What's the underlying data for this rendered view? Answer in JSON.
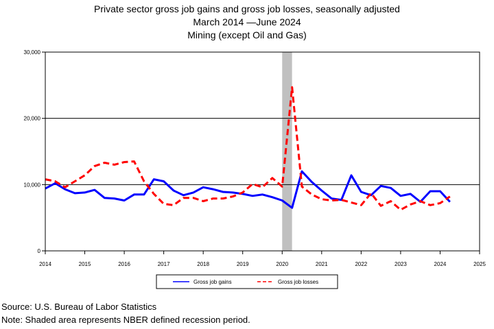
{
  "chart_data": {
    "type": "line",
    "title_lines": [
      "Private sector gross job gains and gross job losses, seasonally adjusted",
      "March 2014 —June 2024",
      "Mining (except Oil and Gas)"
    ],
    "xlim": [
      2014,
      2025
    ],
    "ylim": [
      0,
      30000
    ],
    "x_ticks": [
      2014,
      2015,
      2016,
      2017,
      2018,
      2019,
      2020,
      2021,
      2022,
      2023,
      2024,
      2025
    ],
    "x_tick_labels": [
      "2014",
      "2015",
      "2016",
      "2017",
      "2018",
      "2019",
      "2020",
      "2021",
      "2022",
      "2023",
      "2024",
      "2025"
    ],
    "y_ticks": [
      0,
      10000,
      20000,
      30000
    ],
    "y_tick_labels": [
      "0",
      "10,000",
      "20,000",
      "30,000"
    ],
    "horizontal_gridlines_at": [
      10000,
      20000
    ],
    "recession_shading": {
      "start": 2020.0,
      "end": 2020.25,
      "color": "#c0c0c0"
    },
    "x_period_labels": [
      "2014 Q1",
      "2014 Q2",
      "2014 Q3",
      "2014 Q4",
      "2015 Q1",
      "2015 Q2",
      "2015 Q3",
      "2015 Q4",
      "2016 Q1",
      "2016 Q2",
      "2016 Q3",
      "2016 Q4",
      "2017 Q1",
      "2017 Q2",
      "2017 Q3",
      "2017 Q4",
      "2018 Q1",
      "2018 Q2",
      "2018 Q3",
      "2018 Q4",
      "2019 Q1",
      "2019 Q2",
      "2019 Q3",
      "2019 Q4",
      "2020 Q1",
      "2020 Q2",
      "2020 Q3",
      "2020 Q4",
      "2021 Q1",
      "2021 Q2",
      "2021 Q3",
      "2021 Q4",
      "2022 Q1",
      "2022 Q2",
      "2022 Q3",
      "2022 Q4",
      "2023 Q1",
      "2023 Q2",
      "2023 Q3",
      "2023 Q4",
      "2024 Q1",
      "2024 Q2"
    ],
    "x": [
      2014.0,
      2014.25,
      2014.5,
      2014.75,
      2015.0,
      2015.25,
      2015.5,
      2015.75,
      2016.0,
      2016.25,
      2016.5,
      2016.75,
      2017.0,
      2017.25,
      2017.5,
      2017.75,
      2018.0,
      2018.25,
      2018.5,
      2018.75,
      2019.0,
      2019.25,
      2019.5,
      2019.75,
      2020.0,
      2020.25,
      2020.5,
      2020.75,
      2021.0,
      2021.25,
      2021.5,
      2021.75,
      2022.0,
      2022.25,
      2022.5,
      2022.75,
      2023.0,
      2023.25,
      2023.5,
      2023.75,
      2024.0,
      2024.25
    ],
    "series": [
      {
        "name": "Gross job gains",
        "color": "#0000ff",
        "dash": "solid",
        "values": [
          9400,
          10200,
          9300,
          8700,
          8800,
          9200,
          8000,
          7900,
          7600,
          8500,
          8500,
          10800,
          10500,
          9100,
          8400,
          8800,
          9600,
          9300,
          8900,
          8800,
          8600,
          8300,
          8500,
          8100,
          7600,
          6500,
          12000,
          10400,
          9100,
          7900,
          7700,
          11400,
          8900,
          8400,
          9800,
          9500,
          8300,
          8600,
          7400,
          9000,
          9000,
          7400
        ]
      },
      {
        "name": "Gross job losses",
        "color": "#ff0000",
        "dash": "dashed",
        "values": [
          10800,
          10500,
          9600,
          10500,
          11400,
          12800,
          13300,
          13000,
          13400,
          13500,
          10500,
          8600,
          7100,
          6900,
          8000,
          8000,
          7500,
          7900,
          7900,
          8200,
          8800,
          10100,
          9600,
          11000,
          9700,
          24700,
          9700,
          8500,
          7800,
          7600,
          7700,
          7300,
          6900,
          8700,
          6800,
          7500,
          6200,
          7000,
          7500,
          6900,
          7200,
          8200
        ]
      }
    ]
  },
  "footer": {
    "source": "Source: U.S. Bureau of Labor Statistics",
    "note": "Note: Shaded area represents NBER defined recession period."
  }
}
